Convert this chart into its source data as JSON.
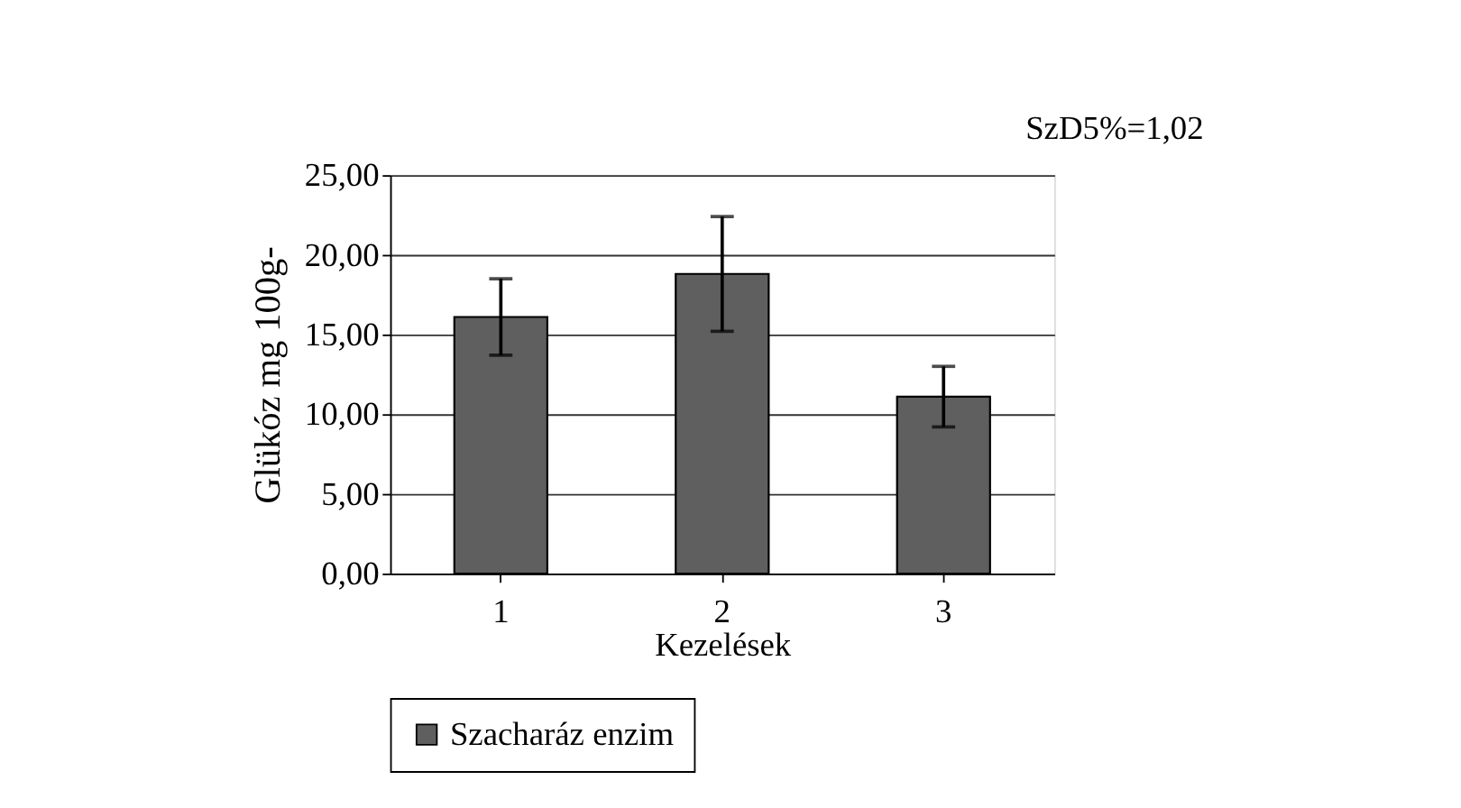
{
  "chart_data": {
    "type": "bar",
    "xlabel": "Kezelések",
    "ylabel": "Glükóz mg 100g-",
    "categories": [
      "1",
      "2",
      "3"
    ],
    "series": [
      {
        "name": "Szacharáz enzim",
        "color": "#5f5f5f",
        "values": [
          16.1,
          18.8,
          11.1
        ],
        "errors": [
          2.4,
          3.6,
          1.9
        ]
      }
    ],
    "ylim": [
      0,
      25
    ],
    "yticks": [
      {
        "value": 0,
        "label": "0,00"
      },
      {
        "value": 5,
        "label": "5,00"
      },
      {
        "value": 10,
        "label": "10,00"
      },
      {
        "value": 15,
        "label": "15,00"
      },
      {
        "value": 20,
        "label": "20,00"
      },
      {
        "value": 25,
        "label": "25,00"
      }
    ],
    "grid": "y",
    "legend": "bottom",
    "annotations": [
      "SzD5%=1,02"
    ]
  }
}
